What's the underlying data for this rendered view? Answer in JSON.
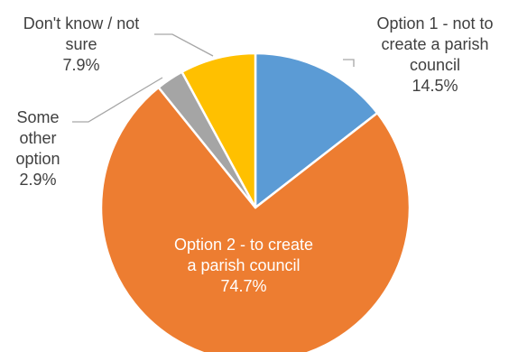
{
  "chart_data": {
    "type": "pie",
    "title": "",
    "slices": [
      {
        "label_lines": [
          "Option 1 - not to",
          "create a parish",
          "council"
        ],
        "value": 14.5,
        "value_text": "14.5%",
        "color": "#5b9bd5"
      },
      {
        "label_lines": [
          "Option 2 - to create",
          "a parish council"
        ],
        "value": 74.7,
        "value_text": "74.7%",
        "color": "#ed7d31"
      },
      {
        "label_lines": [
          "Some",
          "other",
          "option"
        ],
        "value": 2.9,
        "value_text": "2.9%",
        "color": "#a5a5a5"
      },
      {
        "label_lines": [
          "Don't know / not",
          "sure"
        ],
        "value": 7.9,
        "value_text": "7.9%",
        "color": "#ffc000"
      }
    ],
    "legend": "none"
  }
}
